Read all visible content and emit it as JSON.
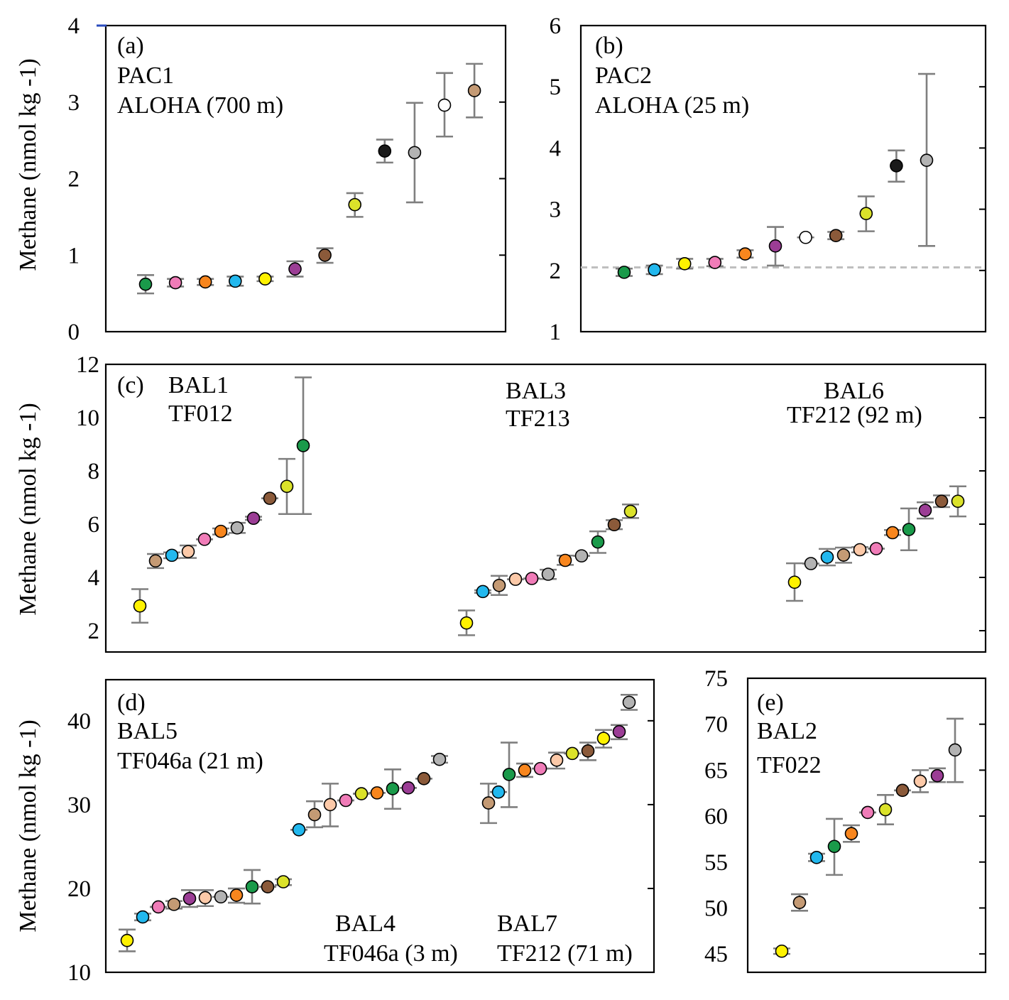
{
  "colors": {
    "green": "#1a9a4a",
    "pink": "#f07cb8",
    "orange": "#f8861e",
    "cyan": "#22b8ee",
    "yellow": "#fff200",
    "purple": "#9b3d95",
    "brown": "#8b5a3a",
    "olive": "#dbe22a",
    "black": "#1a1a1a",
    "gray": "#b3b3b3",
    "white": "#ffffff",
    "tan": "#c49a74",
    "peach": "#fcc9a8",
    "errorbar": "#7f7f7f",
    "refline": "#bfbfbf"
  },
  "chart_data": [
    {
      "id": "a",
      "type": "scatter",
      "ylabel": "Methane (nmol kg -1)",
      "ylim": [
        0,
        4
      ],
      "yticks": [
        0,
        1,
        2,
        3,
        4
      ],
      "labels": [
        "(a)",
        "PAC1",
        "ALOHA (700 m)"
      ],
      "points": [
        {
          "x": 1,
          "y": 0.62,
          "lo": 0.5,
          "hi": 0.74,
          "color": "green"
        },
        {
          "x": 2,
          "y": 0.64,
          "lo": 0.59,
          "hi": 0.69,
          "color": "pink"
        },
        {
          "x": 3,
          "y": 0.65,
          "lo": 0.61,
          "hi": 0.69,
          "color": "orange"
        },
        {
          "x": 4,
          "y": 0.66,
          "lo": 0.6,
          "hi": 0.72,
          "color": "cyan"
        },
        {
          "x": 5,
          "y": 0.69,
          "lo": 0.66,
          "hi": 0.72,
          "color": "yellow"
        },
        {
          "x": 6,
          "y": 0.82,
          "lo": 0.72,
          "hi": 0.92,
          "color": "purple"
        },
        {
          "x": 7,
          "y": 1.0,
          "lo": 0.9,
          "hi": 1.09,
          "color": "brown"
        },
        {
          "x": 8,
          "y": 1.66,
          "lo": 1.5,
          "hi": 1.81,
          "color": "olive"
        },
        {
          "x": 9,
          "y": 2.36,
          "lo": 2.21,
          "hi": 2.51,
          "color": "black"
        },
        {
          "x": 10,
          "y": 2.34,
          "lo": 1.69,
          "hi": 2.99,
          "color": "gray"
        },
        {
          "x": 11,
          "y": 2.96,
          "lo": 2.55,
          "hi": 3.38,
          "color": "white"
        },
        {
          "x": 12,
          "y": 3.15,
          "lo": 2.8,
          "hi": 3.5,
          "color": "tan"
        }
      ]
    },
    {
      "id": "b",
      "type": "scatter",
      "ylim": [
        1,
        6
      ],
      "yticks": [
        1,
        2,
        3,
        4,
        5,
        6
      ],
      "reference_line": 2.05,
      "labels": [
        "(b)",
        "PAC2",
        "ALOHA (25 m)"
      ],
      "points": [
        {
          "x": 1,
          "y": 1.97,
          "lo": 1.91,
          "hi": 2.03,
          "color": "green"
        },
        {
          "x": 2,
          "y": 2.01,
          "lo": 1.94,
          "hi": 2.08,
          "color": "cyan"
        },
        {
          "x": 3,
          "y": 2.11,
          "lo": 2.03,
          "hi": 2.19,
          "color": "yellow"
        },
        {
          "x": 4,
          "y": 2.13,
          "lo": 2.07,
          "hi": 2.19,
          "color": "pink"
        },
        {
          "x": 5,
          "y": 2.27,
          "lo": 2.21,
          "hi": 2.33,
          "color": "orange"
        },
        {
          "x": 6,
          "y": 2.4,
          "lo": 2.08,
          "hi": 2.71,
          "color": "purple"
        },
        {
          "x": 7,
          "y": 2.54,
          "lo": 2.54,
          "hi": 2.54,
          "color": "white"
        },
        {
          "x": 8,
          "y": 2.57,
          "lo": 2.51,
          "hi": 2.63,
          "color": "brown"
        },
        {
          "x": 9,
          "y": 2.93,
          "lo": 2.64,
          "hi": 3.21,
          "color": "olive"
        },
        {
          "x": 10,
          "y": 3.71,
          "lo": 3.45,
          "hi": 3.96,
          "color": "black"
        },
        {
          "x": 11,
          "y": 3.8,
          "lo": 2.4,
          "hi": 5.21,
          "color": "gray"
        }
      ]
    },
    {
      "id": "c",
      "type": "scatter",
      "ylabel": "Methane (nmol kg -1)",
      "ylim": [
        1.2,
        12
      ],
      "yticks": [
        2,
        4,
        6,
        8,
        10,
        12
      ],
      "labels": [
        "(c)",
        "BAL1",
        "TF012",
        "BAL3",
        "TF213",
        "BAL6",
        "TF212 (92 m)"
      ],
      "points": [
        {
          "x": 1,
          "y": 2.93,
          "lo": 2.3,
          "hi": 3.56,
          "color": "yellow"
        },
        {
          "x": 2,
          "y": 4.62,
          "lo": 4.35,
          "hi": 4.88,
          "color": "tan"
        },
        {
          "x": 3,
          "y": 4.83,
          "lo": 4.72,
          "hi": 4.94,
          "color": "cyan"
        },
        {
          "x": 4,
          "y": 4.97,
          "lo": 4.73,
          "hi": 5.2,
          "color": "peach"
        },
        {
          "x": 5,
          "y": 5.43,
          "lo": 5.43,
          "hi": 5.43,
          "color": "pink"
        },
        {
          "x": 6,
          "y": 5.73,
          "lo": 5.61,
          "hi": 5.84,
          "color": "orange"
        },
        {
          "x": 7,
          "y": 5.86,
          "lo": 5.67,
          "hi": 6.05,
          "color": "gray"
        },
        {
          "x": 8,
          "y": 6.22,
          "lo": 6.16,
          "hi": 6.28,
          "color": "purple"
        },
        {
          "x": 9,
          "y": 6.97,
          "lo": 6.97,
          "hi": 6.97,
          "color": "brown"
        },
        {
          "x": 10,
          "y": 7.42,
          "lo": 6.38,
          "hi": 8.45,
          "color": "olive"
        },
        {
          "x": 11,
          "y": 8.95,
          "lo": 6.38,
          "hi": 11.51,
          "color": "green"
        },
        {
          "x": 20,
          "y": 2.29,
          "lo": 1.83,
          "hi": 2.76,
          "color": "yellow"
        },
        {
          "x": 21,
          "y": 3.47,
          "lo": 3.42,
          "hi": 3.52,
          "color": "cyan"
        },
        {
          "x": 22,
          "y": 3.7,
          "lo": 3.34,
          "hi": 4.06,
          "color": "tan"
        },
        {
          "x": 23,
          "y": 3.93,
          "lo": 3.93,
          "hi": 3.93,
          "color": "peach"
        },
        {
          "x": 24,
          "y": 3.96,
          "lo": 3.96,
          "hi": 3.96,
          "color": "pink"
        },
        {
          "x": 25,
          "y": 4.12,
          "lo": 3.94,
          "hi": 4.29,
          "color": "gray"
        },
        {
          "x": 26,
          "y": 4.64,
          "lo": 4.47,
          "hi": 4.82,
          "color": "orange"
        },
        {
          "x": 27,
          "y": 4.81,
          "lo": 4.81,
          "hi": 4.81,
          "color": "gray"
        },
        {
          "x": 28,
          "y": 5.33,
          "lo": 4.92,
          "hi": 5.73,
          "color": "green"
        },
        {
          "x": 29,
          "y": 5.98,
          "lo": 5.81,
          "hi": 6.15,
          "color": "brown"
        },
        {
          "x": 30,
          "y": 6.48,
          "lo": 6.23,
          "hi": 6.74,
          "color": "olive"
        },
        {
          "x": 40,
          "y": 3.82,
          "lo": 3.12,
          "hi": 4.53,
          "color": "yellow"
        },
        {
          "x": 41,
          "y": 4.52,
          "lo": 4.52,
          "hi": 4.52,
          "color": "gray"
        },
        {
          "x": 42,
          "y": 4.76,
          "lo": 4.45,
          "hi": 5.07,
          "color": "cyan"
        },
        {
          "x": 43,
          "y": 4.84,
          "lo": 4.55,
          "hi": 5.12,
          "color": "tan"
        },
        {
          "x": 44,
          "y": 5.04,
          "lo": 4.94,
          "hi": 5.14,
          "color": "peach"
        },
        {
          "x": 45,
          "y": 5.08,
          "lo": 5.08,
          "hi": 5.08,
          "color": "pink"
        },
        {
          "x": 46,
          "y": 5.68,
          "lo": 5.59,
          "hi": 5.78,
          "color": "orange"
        },
        {
          "x": 47,
          "y": 5.8,
          "lo": 5.02,
          "hi": 6.59,
          "color": "green"
        },
        {
          "x": 48,
          "y": 6.52,
          "lo": 6.21,
          "hi": 6.82,
          "color": "purple"
        },
        {
          "x": 49,
          "y": 6.86,
          "lo": 6.64,
          "hi": 7.08,
          "color": "brown"
        },
        {
          "x": 50,
          "y": 6.86,
          "lo": 6.29,
          "hi": 7.42,
          "color": "olive"
        }
      ]
    },
    {
      "id": "d",
      "type": "scatter",
      "ylabel": "Methane (nmol kg -1)",
      "ylim": [
        10,
        44.9
      ],
      "yticks": [
        10,
        20,
        30,
        40
      ],
      "labels": [
        "(d)",
        "BAL5",
        "TF046a (21 m)",
        "BAL4",
        "TF046a (3 m)",
        "BAL7",
        "TF212 (71 m)"
      ],
      "points": [
        {
          "x": 1,
          "y": 13.8,
          "lo": 12.5,
          "hi": 15.1,
          "color": "yellow"
        },
        {
          "x": 2,
          "y": 16.6,
          "lo": 16.2,
          "hi": 17.0,
          "color": "cyan"
        },
        {
          "x": 3,
          "y": 17.8,
          "lo": 17.8,
          "hi": 17.8,
          "color": "pink"
        },
        {
          "x": 4,
          "y": 18.1,
          "lo": 17.6,
          "hi": 18.5,
          "color": "tan"
        },
        {
          "x": 5,
          "y": 18.8,
          "lo": 17.8,
          "hi": 19.8,
          "color": "purple"
        },
        {
          "x": 6,
          "y": 18.9,
          "lo": 17.9,
          "hi": 19.8,
          "color": "peach"
        },
        {
          "x": 7,
          "y": 19.0,
          "lo": 19.0,
          "hi": 19.0,
          "color": "gray"
        },
        {
          "x": 8,
          "y": 19.2,
          "lo": 18.3,
          "hi": 20.0,
          "color": "orange"
        },
        {
          "x": 9,
          "y": 20.2,
          "lo": 18.2,
          "hi": 22.2,
          "color": "green"
        },
        {
          "x": 10,
          "y": 20.2,
          "lo": 20.2,
          "hi": 20.2,
          "color": "brown"
        },
        {
          "x": 11,
          "y": 20.8,
          "lo": 20.4,
          "hi": 21.1,
          "color": "olive"
        },
        {
          "x": 12,
          "y": 27.0,
          "lo": 27.0,
          "hi": 27.0,
          "color": "cyan"
        },
        {
          "x": 13,
          "y": 28.8,
          "lo": 27.3,
          "hi": 30.4,
          "color": "tan"
        },
        {
          "x": 14,
          "y": 30.0,
          "lo": 27.4,
          "hi": 32.5,
          "color": "peach"
        },
        {
          "x": 15,
          "y": 30.5,
          "lo": 30.5,
          "hi": 30.5,
          "color": "pink"
        },
        {
          "x": 16,
          "y": 31.3,
          "lo": 31.3,
          "hi": 31.3,
          "color": "olive"
        },
        {
          "x": 17,
          "y": 31.4,
          "lo": 31.4,
          "hi": 31.4,
          "color": "orange"
        },
        {
          "x": 18,
          "y": 31.9,
          "lo": 29.5,
          "hi": 34.2,
          "color": "green"
        },
        {
          "x": 19,
          "y": 32.0,
          "lo": 32.0,
          "hi": 32.0,
          "color": "purple"
        },
        {
          "x": 20,
          "y": 33.1,
          "lo": 33.1,
          "hi": 33.1,
          "color": "brown"
        },
        {
          "x": 21,
          "y": 35.4,
          "lo": 35.0,
          "hi": 35.8,
          "color": "gray"
        },
        {
          "x": 24,
          "y": 30.2,
          "lo": 27.8,
          "hi": 32.5,
          "color": "tan"
        },
        {
          "x": 25,
          "y": 31.5,
          "lo": 31.5,
          "hi": 31.5,
          "color": "cyan"
        },
        {
          "x": 26,
          "y": 33.6,
          "lo": 29.7,
          "hi": 37.4,
          "color": "green"
        },
        {
          "x": 27,
          "y": 34.1,
          "lo": 33.3,
          "hi": 34.9,
          "color": "orange"
        },
        {
          "x": 28,
          "y": 34.3,
          "lo": 34.3,
          "hi": 34.3,
          "color": "pink"
        },
        {
          "x": 29,
          "y": 35.3,
          "lo": 34.3,
          "hi": 36.2,
          "color": "peach"
        },
        {
          "x": 30,
          "y": 36.1,
          "lo": 36.1,
          "hi": 36.1,
          "color": "olive"
        },
        {
          "x": 31,
          "y": 36.4,
          "lo": 35.3,
          "hi": 37.4,
          "color": "brown"
        },
        {
          "x": 32,
          "y": 37.9,
          "lo": 36.8,
          "hi": 38.9,
          "color": "yellow"
        },
        {
          "x": 33,
          "y": 38.7,
          "lo": 37.8,
          "hi": 39.5,
          "color": "purple"
        },
        {
          "x": 34,
          "y": 42.2,
          "lo": 41.3,
          "hi": 43.1,
          "color": "gray"
        }
      ]
    },
    {
      "id": "e",
      "type": "scatter",
      "ylim": [
        43,
        75
      ],
      "yticks": [
        45,
        50,
        55,
        60,
        65,
        70,
        75
      ],
      "labels": [
        "(e)",
        "BAL2",
        "TF022"
      ],
      "points": [
        {
          "x": 1,
          "y": 45.3,
          "lo": 45.0,
          "hi": 45.6,
          "color": "yellow"
        },
        {
          "x": 2,
          "y": 50.6,
          "lo": 49.7,
          "hi": 51.5,
          "color": "tan"
        },
        {
          "x": 3,
          "y": 55.5,
          "lo": 55.1,
          "hi": 55.9,
          "color": "cyan"
        },
        {
          "x": 4,
          "y": 56.7,
          "lo": 53.6,
          "hi": 59.7,
          "color": "green"
        },
        {
          "x": 5,
          "y": 58.1,
          "lo": 57.2,
          "hi": 59.0,
          "color": "orange"
        },
        {
          "x": 6,
          "y": 60.4,
          "lo": 60.4,
          "hi": 60.4,
          "color": "pink"
        },
        {
          "x": 7,
          "y": 60.7,
          "lo": 59.1,
          "hi": 62.3,
          "color": "olive"
        },
        {
          "x": 8,
          "y": 62.8,
          "lo": 62.8,
          "hi": 62.8,
          "color": "brown"
        },
        {
          "x": 9,
          "y": 63.8,
          "lo": 62.6,
          "hi": 65.0,
          "color": "peach"
        },
        {
          "x": 10,
          "y": 64.4,
          "lo": 63.7,
          "hi": 65.2,
          "color": "purple"
        },
        {
          "x": 11,
          "y": 67.2,
          "lo": 63.7,
          "hi": 70.6,
          "color": "gray"
        }
      ]
    }
  ]
}
